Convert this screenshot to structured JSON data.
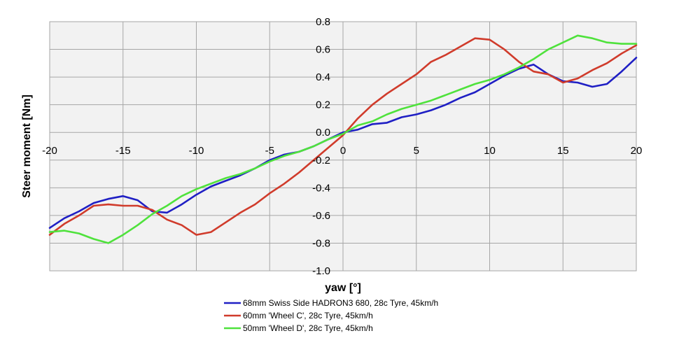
{
  "chart_data": {
    "type": "line",
    "title": "",
    "xlabel": "yaw [°]",
    "ylabel": "Steer moment  [Nm]",
    "xlim": [
      -20,
      20
    ],
    "ylim": [
      -1.0,
      0.8
    ],
    "x_ticks": [
      -20,
      -15,
      -10,
      -5,
      0,
      5,
      10,
      15,
      20
    ],
    "x_tick_labels": [
      "-20",
      "-15",
      "-10",
      "-5",
      "0",
      "5",
      "10",
      "15",
      "20"
    ],
    "y_ticks": [
      -1.0,
      -0.8,
      -0.6,
      -0.4,
      -0.2,
      0.0,
      0.2,
      0.4,
      0.6,
      0.8
    ],
    "y_tick_labels": [
      "-1.0",
      "-0.8",
      "-0.6",
      "-0.4",
      "-0.2",
      "0.0",
      "0.2",
      "0.4",
      "0.6",
      "0.8"
    ],
    "grid": true,
    "legend_position": "bottom-center",
    "plot_background": "#f2f2f2",
    "grid_color": "#a6a6a6",
    "series": [
      {
        "name": "68mm Swiss Side HADRON3  680, 28c Tyre, 45km/h",
        "color": "#1f1fc4",
        "x": [
          -20,
          -19,
          -18,
          -17,
          -16,
          -15,
          -14,
          -13,
          -12,
          -11,
          -10,
          -9,
          -8,
          -7,
          -6,
          -5,
          -4,
          -3,
          -2,
          -1,
          0,
          1,
          2,
          3,
          4,
          5,
          6,
          7,
          8,
          9,
          10,
          11,
          12,
          13,
          14,
          15,
          16,
          17,
          18,
          19,
          20
        ],
        "y": [
          -0.69,
          -0.62,
          -0.57,
          -0.51,
          -0.48,
          -0.46,
          -0.49,
          -0.57,
          -0.58,
          -0.52,
          -0.45,
          -0.39,
          -0.35,
          -0.31,
          -0.26,
          -0.2,
          -0.16,
          -0.14,
          -0.1,
          -0.05,
          0.0,
          0.02,
          0.06,
          0.07,
          0.11,
          0.13,
          0.16,
          0.2,
          0.25,
          0.29,
          0.35,
          0.41,
          0.46,
          0.49,
          0.42,
          0.37,
          0.36,
          0.33,
          0.35,
          0.44,
          0.54
        ]
      },
      {
        "name": "60mm 'Wheel C', 28c Tyre, 45km/h",
        "color": "#d03b2b",
        "x": [
          -20,
          -19,
          -18,
          -17,
          -16,
          -15,
          -14,
          -13,
          -12,
          -11,
          -10,
          -9,
          -8,
          -7,
          -6,
          -5,
          -4,
          -3,
          -2,
          -1,
          0,
          1,
          2,
          3,
          4,
          5,
          6,
          7,
          8,
          9,
          10,
          11,
          12,
          13,
          14,
          15,
          16,
          17,
          18,
          19,
          20
        ],
        "y": [
          -0.74,
          -0.66,
          -0.6,
          -0.53,
          -0.52,
          -0.53,
          -0.53,
          -0.56,
          -0.63,
          -0.67,
          -0.74,
          -0.72,
          -0.65,
          -0.58,
          -0.52,
          -0.44,
          -0.37,
          -0.29,
          -0.2,
          -0.11,
          -0.02,
          0.1,
          0.2,
          0.28,
          0.35,
          0.42,
          0.51,
          0.56,
          0.62,
          0.68,
          0.67,
          0.6,
          0.51,
          0.44,
          0.42,
          0.36,
          0.39,
          0.45,
          0.5,
          0.57,
          0.63
        ]
      },
      {
        "name": "50mm 'Wheel D', 28c Tyre, 45km/h",
        "color": "#4fe23c",
        "x": [
          -20,
          -19,
          -18,
          -17,
          -16,
          -15,
          -14,
          -13,
          -12,
          -11,
          -10,
          -9,
          -8,
          -7,
          -6,
          -5,
          -4,
          -3,
          -2,
          -1,
          0,
          1,
          2,
          3,
          4,
          5,
          6,
          7,
          8,
          9,
          10,
          11,
          12,
          13,
          14,
          15,
          16,
          17,
          18,
          19,
          20
        ],
        "y": [
          -0.72,
          -0.71,
          -0.73,
          -0.77,
          -0.8,
          -0.74,
          -0.67,
          -0.59,
          -0.53,
          -0.46,
          -0.41,
          -0.37,
          -0.33,
          -0.3,
          -0.26,
          -0.21,
          -0.17,
          -0.14,
          -0.1,
          -0.05,
          -0.01,
          0.05,
          0.08,
          0.13,
          0.17,
          0.2,
          0.23,
          0.27,
          0.31,
          0.35,
          0.38,
          0.42,
          0.47,
          0.53,
          0.6,
          0.65,
          0.7,
          0.68,
          0.65,
          0.64,
          0.64
        ]
      }
    ]
  }
}
